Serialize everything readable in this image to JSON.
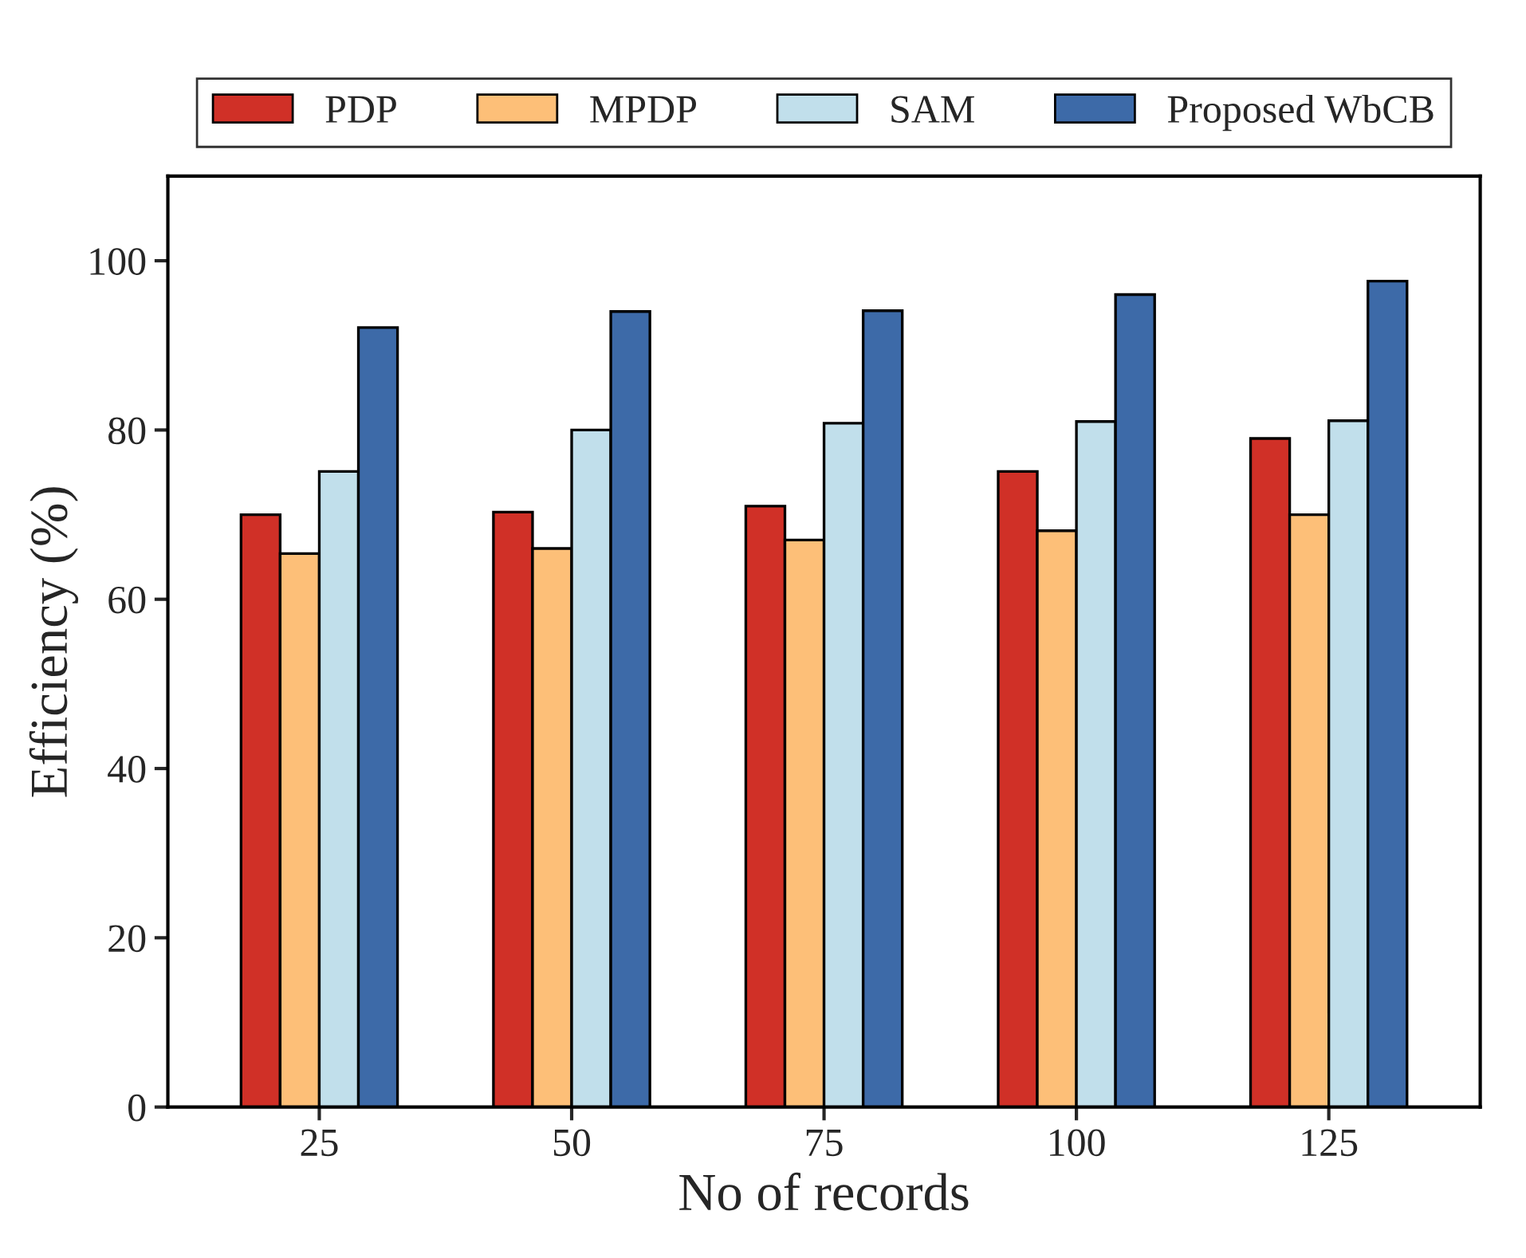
{
  "chart_data": {
    "type": "bar",
    "xlabel": "No of records",
    "ylabel": "Efficiency (%)",
    "categories": [
      "25",
      "50",
      "75",
      "100",
      "125"
    ],
    "series": [
      {
        "name": "PDP",
        "color": "#d03027",
        "values": [
          70.0,
          70.3,
          71.0,
          75.1,
          79.0
        ]
      },
      {
        "name": "MPDP",
        "color": "#fdbf78",
        "values": [
          65.4,
          66.0,
          67.0,
          68.1,
          70.0
        ]
      },
      {
        "name": "SAM",
        "color": "#c1dfeb",
        "values": [
          75.1,
          80.0,
          80.8,
          81.0,
          81.1
        ]
      },
      {
        "name": "Proposed WbCB",
        "color": "#3d6aa8",
        "values": [
          92.1,
          94.0,
          94.1,
          96.0,
          97.6
        ]
      }
    ],
    "ylim": [
      0,
      110
    ],
    "yticks": [
      0,
      20,
      40,
      60,
      80,
      100
    ],
    "grid": false,
    "legend": "top"
  }
}
